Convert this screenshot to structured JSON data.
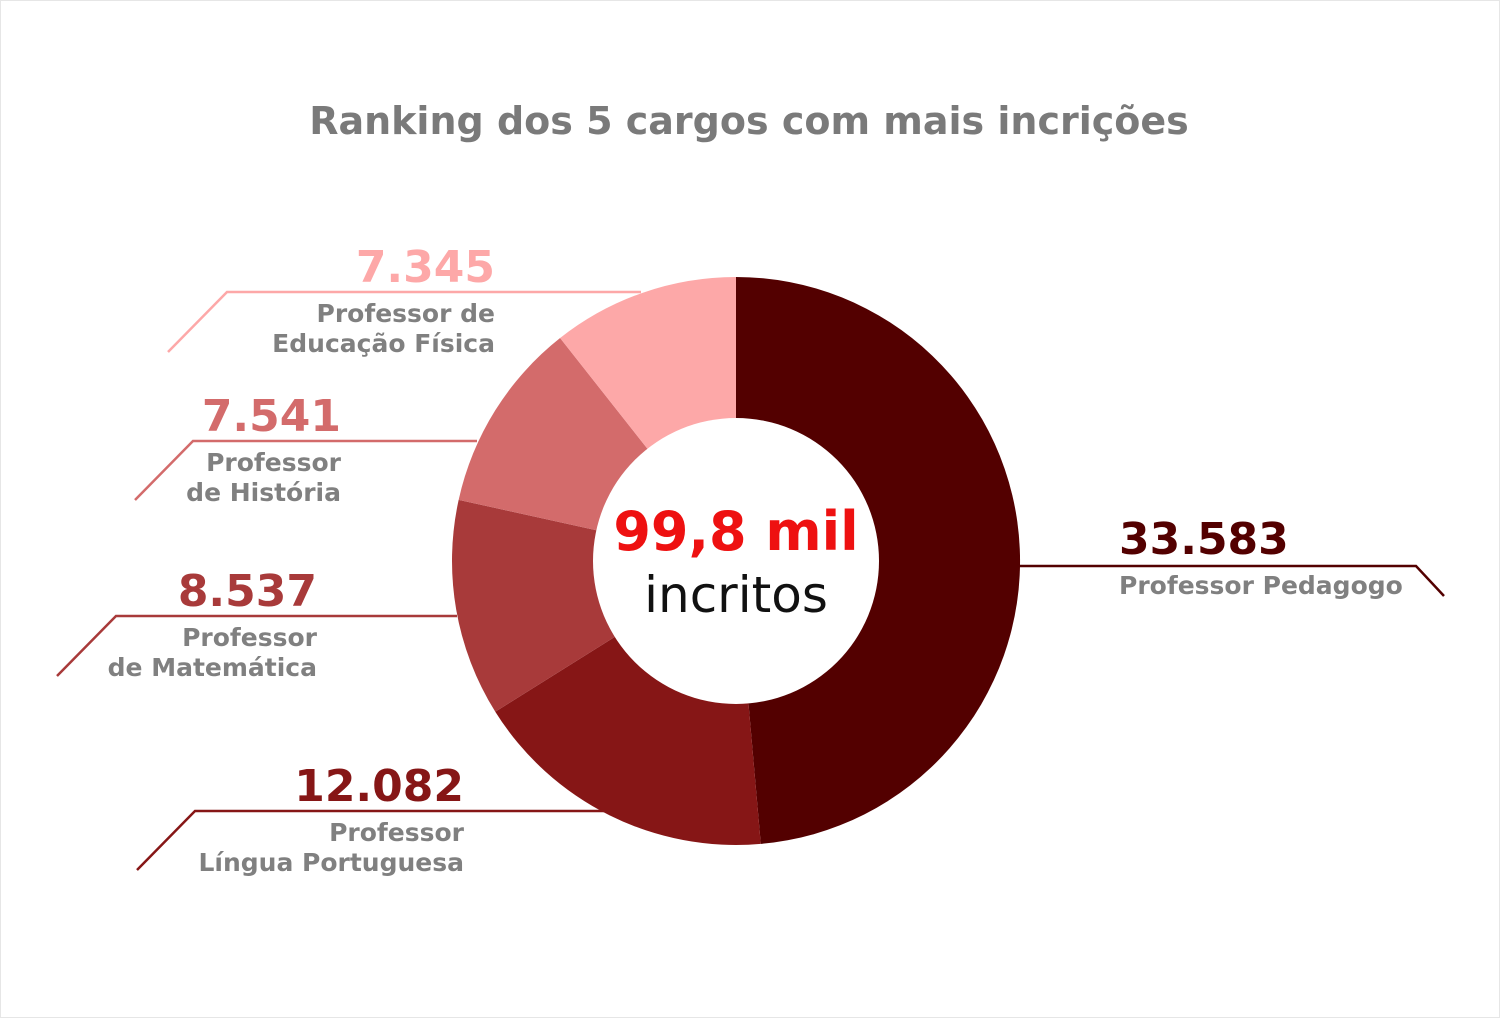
{
  "chart_data": {
    "type": "pie",
    "variant": "donut",
    "title": "Ranking dos 5 cargos com mais incrições",
    "center": {
      "value": "99,8 mil",
      "caption": "incritos",
      "value_color": "#ee1111"
    },
    "slices": [
      {
        "name": "Professor Pedagogo",
        "label_lines": [
          "Professor Pedagogo"
        ],
        "value": 33583,
        "display": "33.583",
        "color": "#530000"
      },
      {
        "name": "Professor Língua Portuguesa",
        "label_lines": [
          "Professor",
          "Língua Portuguesa"
        ],
        "value": 12082,
        "display": "12.082",
        "color": "#861616"
      },
      {
        "name": "Professor de Matemática",
        "label_lines": [
          "Professor",
          "de Matemática"
        ],
        "value": 8537,
        "display": "8.537",
        "color": "#a83a3a"
      },
      {
        "name": "Professor de História",
        "label_lines": [
          "Professor",
          "de História"
        ],
        "value": 7541,
        "display": "7.541",
        "color": "#d36b6b"
      },
      {
        "name": "Professor de Educação Física",
        "label_lines": [
          "Professor de",
          "Educação Física"
        ],
        "value": 7345,
        "display": "7.345",
        "color": "#fda8a8"
      }
    ]
  }
}
